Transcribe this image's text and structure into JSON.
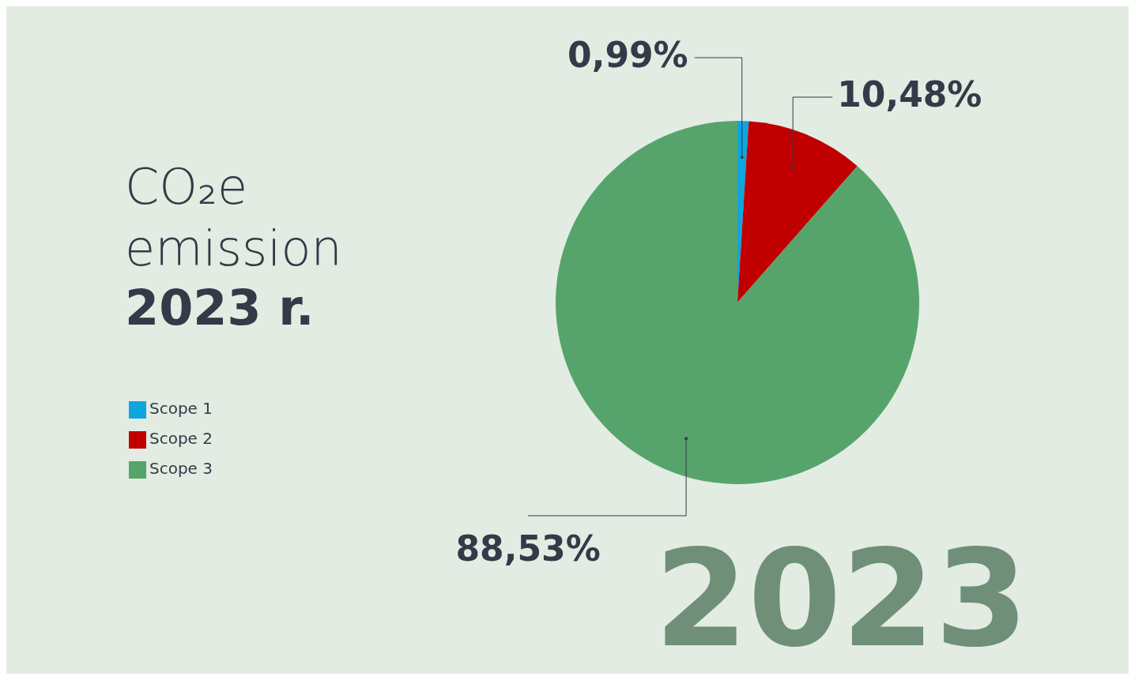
{
  "chart_data": {
    "type": "pie",
    "title": "CO₂e emission",
    "subtitle": "2023 r.",
    "categories": [
      "Scope 1",
      "Scope 2",
      "Scope 3"
    ],
    "values": [
      0.99,
      10.48,
      88.53
    ],
    "colors": [
      "#0ea5e0",
      "#c00000",
      "#56a46c"
    ],
    "value_labels": [
      "0,99%",
      "10,48%",
      "88,53%"
    ],
    "legend": "left",
    "annotations": [
      "2023"
    ]
  }
}
